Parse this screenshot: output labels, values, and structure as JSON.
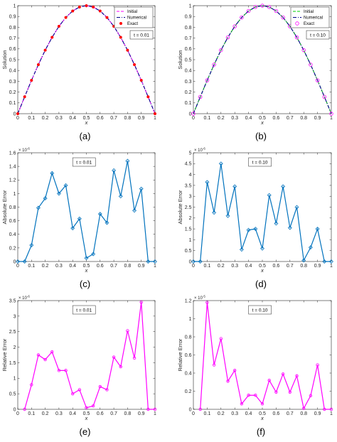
{
  "chart_data": [
    {
      "id": "a",
      "type": "line",
      "caption": "(a)",
      "xlabel": "x",
      "ylabel": "Solution",
      "xlim": [
        0,
        1
      ],
      "ylim": [
        0,
        1
      ],
      "xticks": [
        "0",
        "0.1",
        "0.2",
        "0.3",
        "0.4",
        "0.5",
        "0.6",
        "0.7",
        "0.8",
        "0.9",
        "1"
      ],
      "yticks": [
        "0",
        "0.1",
        "0.2",
        "0.3",
        "0.4",
        "0.5",
        "0.6",
        "0.7",
        "0.8",
        "0.9",
        "1"
      ],
      "annotation": "t = 0.01",
      "legend_position": "top-right",
      "x": [
        0,
        0.05,
        0.1,
        0.15,
        0.2,
        0.25,
        0.3,
        0.35,
        0.4,
        0.45,
        0.5,
        0.55,
        0.6,
        0.65,
        0.7,
        0.75,
        0.8,
        0.85,
        0.9,
        0.95,
        1
      ],
      "series": [
        {
          "name": "Initial",
          "style": "dashed",
          "color": "#ff00ff",
          "values": [
            0,
            0.156,
            0.309,
            0.454,
            0.588,
            0.707,
            0.809,
            0.891,
            0.951,
            0.988,
            1,
            0.988,
            0.951,
            0.891,
            0.809,
            0.707,
            0.588,
            0.454,
            0.309,
            0.156,
            0
          ]
        },
        {
          "name": "Numerical",
          "style": "dashdot",
          "color": "#00008b",
          "values": [
            0,
            0.156,
            0.309,
            0.454,
            0.588,
            0.707,
            0.809,
            0.891,
            0.951,
            0.988,
            1,
            0.988,
            0.951,
            0.891,
            0.809,
            0.707,
            0.588,
            0.454,
            0.309,
            0.156,
            0
          ]
        },
        {
          "name": "Exact",
          "style": "markers-filled",
          "color": "#ff0000",
          "values": [
            0,
            0.156,
            0.309,
            0.454,
            0.588,
            0.707,
            0.809,
            0.891,
            0.951,
            0.988,
            1,
            0.988,
            0.951,
            0.891,
            0.809,
            0.707,
            0.588,
            0.454,
            0.309,
            0.156,
            0
          ]
        }
      ]
    },
    {
      "id": "b",
      "type": "line",
      "caption": "(b)",
      "xlabel": "x",
      "ylabel": "Solution",
      "xlim": [
        0,
        1
      ],
      "ylim": [
        0,
        1
      ],
      "xticks": [
        "0",
        "0.1",
        "0.2",
        "0.3",
        "0.4",
        "0.5",
        "0.6",
        "0.7",
        "0.8",
        "0.9",
        "1"
      ],
      "yticks": [
        "0",
        "0.1",
        "0.2",
        "0.3",
        "0.4",
        "0.5",
        "0.6",
        "0.7",
        "0.8",
        "0.9",
        "1"
      ],
      "annotation": "t = 0.10",
      "legend_position": "top-right",
      "x": [
        0,
        0.05,
        0.1,
        0.15,
        0.2,
        0.25,
        0.3,
        0.35,
        0.4,
        0.45,
        0.5,
        0.55,
        0.6,
        0.65,
        0.7,
        0.75,
        0.8,
        0.85,
        0.9,
        0.95,
        1
      ],
      "series": [
        {
          "name": "Initial",
          "style": "dashed",
          "color": "#00cc00",
          "values": [
            0,
            0.156,
            0.309,
            0.454,
            0.588,
            0.707,
            0.809,
            0.891,
            0.951,
            0.988,
            1,
            0.988,
            0.951,
            0.891,
            0.809,
            0.707,
            0.588,
            0.454,
            0.309,
            0.156,
            0
          ]
        },
        {
          "name": "Numerical",
          "style": "dashdot",
          "color": "#00008b",
          "values": [
            0,
            0.156,
            0.309,
            0.454,
            0.588,
            0.707,
            0.809,
            0.891,
            0.951,
            0.988,
            1,
            0.988,
            0.951,
            0.891,
            0.809,
            0.707,
            0.588,
            0.454,
            0.309,
            0.156,
            0
          ]
        },
        {
          "name": "Exact",
          "style": "markers-open",
          "color": "#ff00ff",
          "values": [
            0,
            0.156,
            0.309,
            0.454,
            0.588,
            0.707,
            0.809,
            0.891,
            0.951,
            0.988,
            1,
            0.988,
            0.951,
            0.891,
            0.809,
            0.707,
            0.588,
            0.454,
            0.309,
            0.156,
            0
          ]
        }
      ]
    },
    {
      "id": "c",
      "type": "line",
      "caption": "(c)",
      "xlabel": "x",
      "ylabel": "Absolute Error",
      "xlim": [
        0,
        1
      ],
      "ylim": [
        0,
        1.6e-06
      ],
      "xticks": [
        "0",
        "0.1",
        "0.2",
        "0.3",
        "0.4",
        "0.5",
        "0.6",
        "0.7",
        "0.8",
        "0.9",
        "1"
      ],
      "yticks": [
        "0",
        "0.2",
        "0.4",
        "0.6",
        "0.8",
        "1",
        "1.2",
        "1.4",
        "1.6"
      ],
      "exponent_base": "× 10",
      "exponent_power": "-6",
      "annotation": "t = 0.01",
      "x": [
        0,
        0.05,
        0.1,
        0.15,
        0.2,
        0.25,
        0.3,
        0.35,
        0.4,
        0.45,
        0.5,
        0.55,
        0.6,
        0.65,
        0.7,
        0.75,
        0.8,
        0.85,
        0.9,
        0.95,
        1
      ],
      "series": [
        {
          "style": "line-diamond",
          "color": "#0072bd",
          "values": [
            0,
            0,
            2.4e-07,
            7.9e-07,
            9.3e-07,
            1.3e-06,
            1e-06,
            1.12e-06,
            4.9e-07,
            6.3e-07,
            5e-08,
            1.1e-07,
            7e-07,
            5.7e-07,
            1.34e-06,
            9.6e-07,
            1.48e-06,
            7.5e-07,
            1.07e-06,
            0,
            0
          ]
        }
      ]
    },
    {
      "id": "d",
      "type": "line",
      "caption": "(d)",
      "xlabel": "x",
      "ylabel": "Absolute Error",
      "xlim": [
        0,
        1
      ],
      "ylim": [
        0,
        5e-06
      ],
      "xticks": [
        "0",
        "0.1",
        "0.2",
        "0.3",
        "0.4",
        "0.5",
        "0.6",
        "0.7",
        "0.8",
        "0.9",
        "1"
      ],
      "yticks": [
        "0",
        "0.5",
        "1",
        "1.5",
        "2",
        "2.5",
        "3",
        "3.5",
        "4",
        "4.5",
        "5"
      ],
      "exponent_base": "× 10",
      "exponent_power": "-6",
      "annotation": "t = 0.10",
      "x": [
        0,
        0.05,
        0.1,
        0.15,
        0.2,
        0.25,
        0.3,
        0.35,
        0.4,
        0.45,
        0.5,
        0.55,
        0.6,
        0.65,
        0.7,
        0.75,
        0.8,
        0.85,
        0.9,
        0.95,
        1
      ],
      "series": [
        {
          "style": "line-diamond",
          "color": "#0072bd",
          "values": [
            0,
            0,
            3.65e-06,
            2.25e-06,
            4.5e-06,
            2.1e-06,
            3.45e-06,
            5.5e-07,
            1.45e-06,
            1.5e-06,
            6e-07,
            3.05e-06,
            1.75e-06,
            3.45e-06,
            1.55e-06,
            2.5e-06,
            5e-08,
            6.5e-07,
            1.5e-06,
            0,
            0
          ]
        }
      ]
    },
    {
      "id": "e",
      "type": "line",
      "caption": "(e)",
      "xlabel": "x",
      "ylabel": "Relative Error",
      "xlim": [
        0,
        1
      ],
      "ylim": [
        0,
        3.5e-06
      ],
      "xticks": [
        "0",
        "0.1",
        "0.2",
        "0.3",
        "0.4",
        "0.5",
        "0.6",
        "0.7",
        "0.8",
        "0.9",
        "1"
      ],
      "yticks": [
        "0",
        "0.5",
        "1",
        "1.5",
        "2",
        "2.5",
        "3",
        "3.5"
      ],
      "exponent_base": "× 10",
      "exponent_power": "-6",
      "annotation": "t = 0.01",
      "x": [
        0.05,
        0.1,
        0.15,
        0.2,
        0.25,
        0.3,
        0.35,
        0.4,
        0.45,
        0.5,
        0.55,
        0.6,
        0.65,
        0.7,
        0.75,
        0.8,
        0.85,
        0.9,
        0.95,
        1
      ],
      "series": [
        {
          "style": "line-circle",
          "color": "#ff00ff",
          "values": [
            0,
            7.9e-07,
            1.75e-06,
            1.6e-06,
            1.85e-06,
            1.25e-06,
            1.25e-06,
            5e-07,
            6.3e-07,
            5e-08,
            1.1e-07,
            7.3e-07,
            6.3e-07,
            1.68e-06,
            1.37e-06,
            2.53e-06,
            1.65e-06,
            3.45e-06,
            0,
            0
          ]
        }
      ]
    },
    {
      "id": "f",
      "type": "line",
      "caption": "(f)",
      "xlabel": "x",
      "ylabel": "Relative Error",
      "xlim": [
        0,
        1
      ],
      "ylim": [
        0,
        1.2e-05
      ],
      "xticks": [
        "0",
        "0.1",
        "0.2",
        "0.3",
        "0.4",
        "0.5",
        "0.6",
        "0.7",
        "0.8",
        "0.9",
        "1"
      ],
      "yticks": [
        "0",
        "0.2",
        "0.4",
        "0.6",
        "0.8",
        "1",
        "1.2"
      ],
      "exponent_base": "× 10",
      "exponent_power": "-5",
      "annotation": "t = 0.10",
      "x": [
        0.05,
        0.1,
        0.15,
        0.2,
        0.25,
        0.3,
        0.35,
        0.4,
        0.45,
        0.5,
        0.55,
        0.6,
        0.65,
        0.7,
        0.75,
        0.8,
        0.85,
        0.9,
        0.95,
        1
      ],
      "series": [
        {
          "style": "line-circle",
          "color": "#ff00ff",
          "values": [
            0,
            1.18e-05,
            4.9e-06,
            7.8e-06,
            3.1e-06,
            4.3e-06,
            6e-07,
            1.55e-06,
            1.55e-06,
            6e-07,
            3.2e-06,
            1.9e-06,
            3.9e-06,
            1.9e-06,
            3.7e-06,
            1e-07,
            1.5e-06,
            4.9e-06,
            0,
            0
          ]
        }
      ]
    }
  ]
}
